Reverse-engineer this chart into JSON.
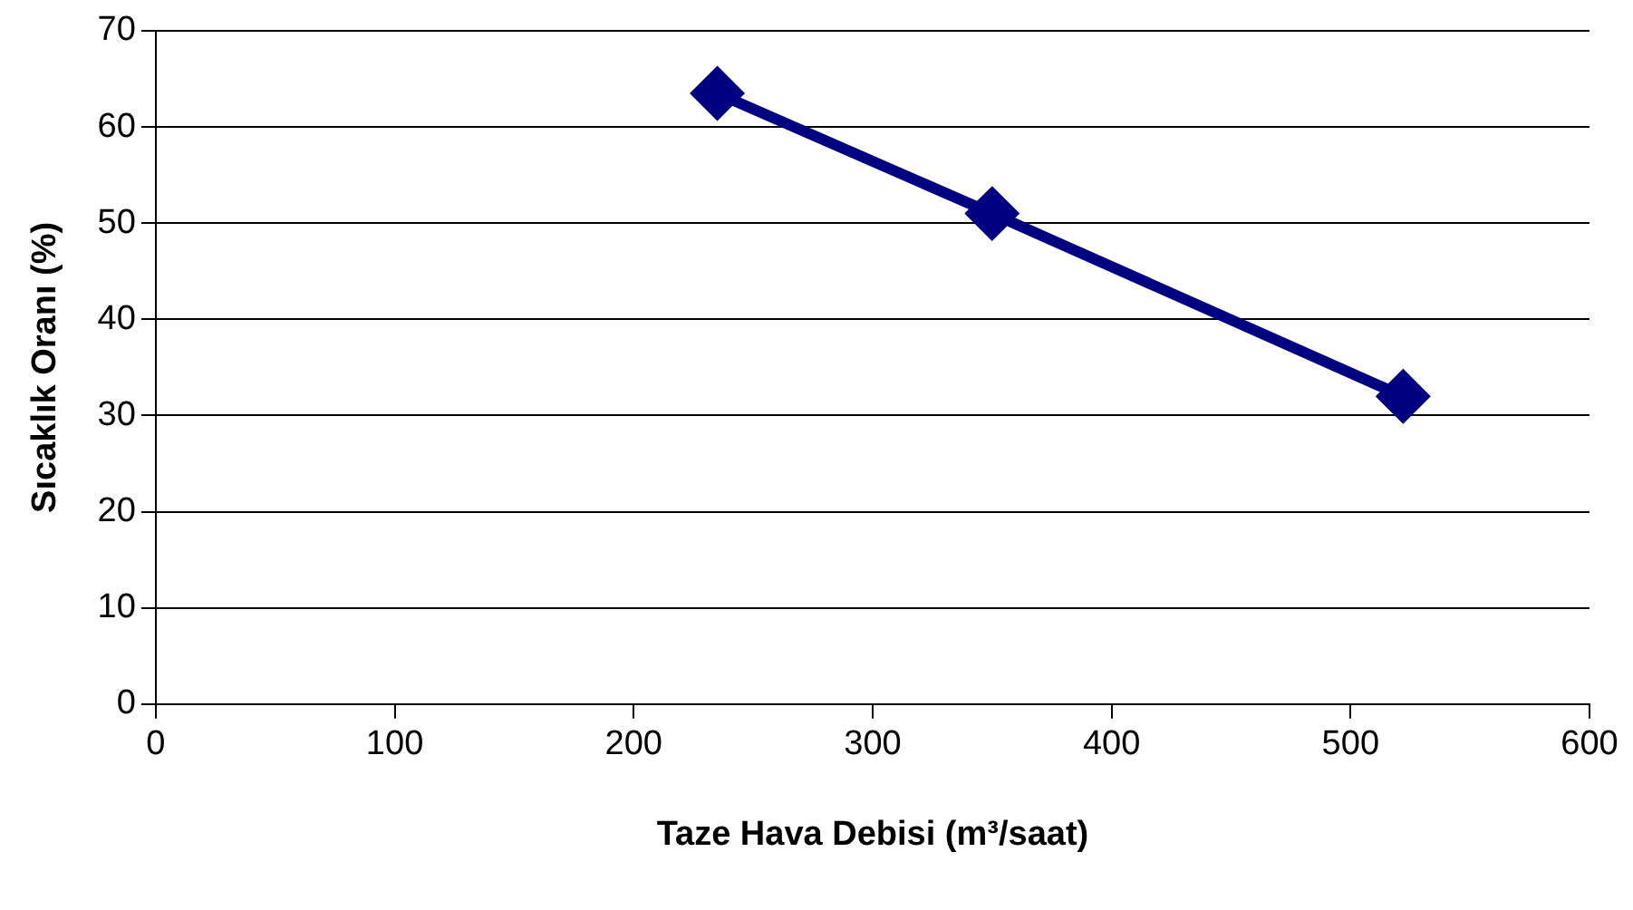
{
  "chart_data": {
    "type": "line",
    "xlabel": "Taze Hava Debisi (m³/saat)",
    "ylabel": "Sıcaklık Oranı (%)",
    "x": [
      235,
      350,
      522
    ],
    "series": [
      {
        "color": "#000080",
        "values": [
          63.5,
          51,
          32
        ]
      }
    ],
    "xlim": [
      0,
      600
    ],
    "xticks": [
      0,
      100,
      200,
      300,
      400,
      500,
      600
    ],
    "ylim": [
      0,
      70
    ],
    "yticks": [
      0,
      10,
      20,
      30,
      40,
      50,
      60,
      70
    ],
    "grid": "y",
    "legend": false,
    "marker": "diamond",
    "line_style": "solid"
  }
}
